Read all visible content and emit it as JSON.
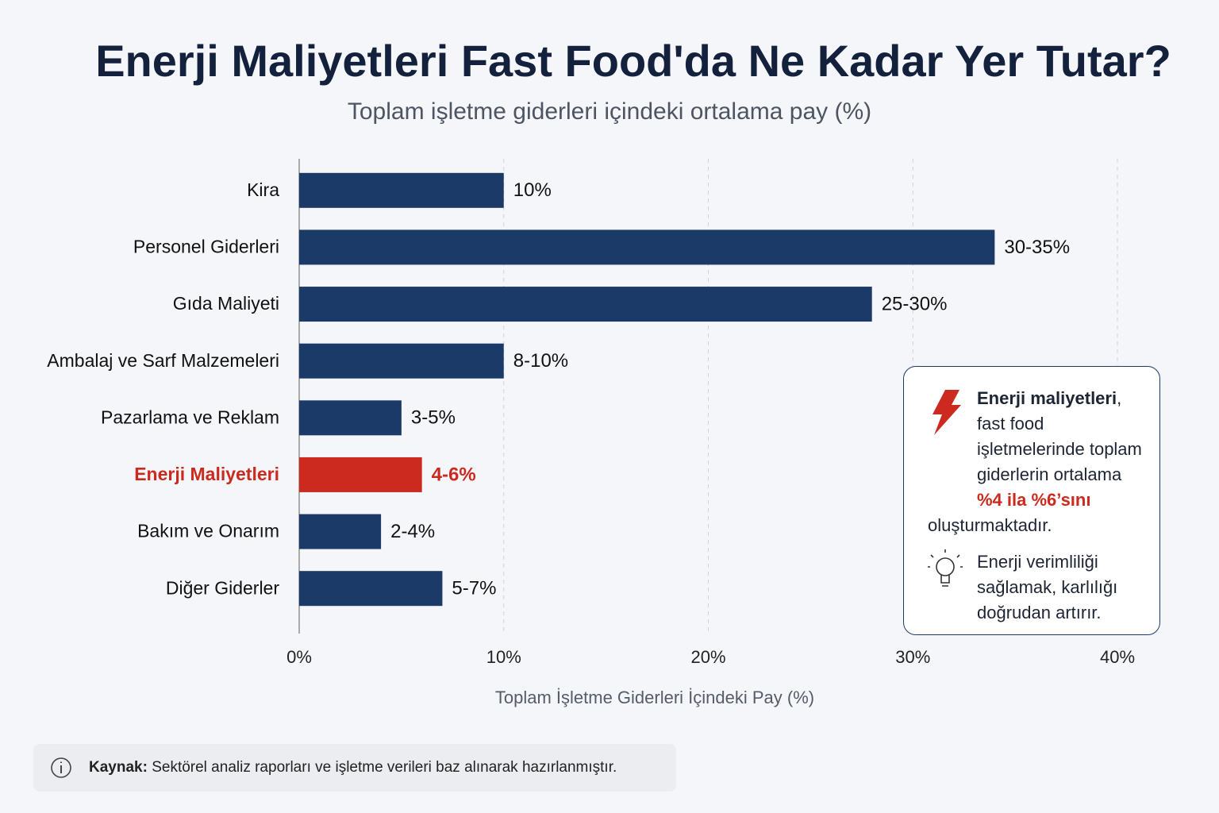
{
  "chart_data": {
    "type": "bar",
    "orientation": "horizontal",
    "title": "Enerji Maliyetleri Fast Food'da Ne Kadar Yer Tutar?",
    "subtitle": "Toplam işletme giderleri içindeki ortalama pay (%)",
    "x_label": "Toplam İşletme Giderleri İçindeki Pay (%)",
    "categories": [
      "Kira",
      "Personel Giderleri",
      "Gıda Maliyeti",
      "Ambalaj ve Sarf Malzemeleri",
      "Pazarlama ve Reklam",
      "Enerji Maliyetleri",
      "Bakım ve Onarım",
      "Diğer Giderler"
    ],
    "values": [
      10,
      34,
      28,
      10,
      5,
      6,
      4,
      7
    ],
    "value_labels": [
      "10%",
      "30-35%",
      "25-30%",
      "8-10%",
      "3-5%",
      "4-6%",
      "2-4%",
      "5-7%"
    ],
    "color": "#1c3a68",
    "highlight_index": 5,
    "highlight_color": "#cc2a1e",
    "xlim": [
      0,
      40
    ],
    "xticks": [
      {
        "value": 0,
        "label": "0%"
      },
      {
        "value": 10,
        "label": "10%"
      },
      {
        "value": 20,
        "label": "20%"
      },
      {
        "value": 30,
        "label": "30%"
      },
      {
        "value": 40,
        "label": "40%"
      }
    ],
    "grid": true,
    "annotation": {
      "bold": "Enerji maliyetleri",
      "text": ", fast food işletmelerinde toplam giderlerin ortalama ",
      "highlight": "%4 ila %6’sını",
      "end": " oluşturmaktadır.",
      "tip": "Enerji verimliliği sağlamak, karlılığı doğrudan artırır."
    },
    "source": {
      "label": "Kaynak:",
      "text": " Sektörel analiz raporları ve işletme verileri baz alınarak hazırlanmıştır."
    }
  }
}
